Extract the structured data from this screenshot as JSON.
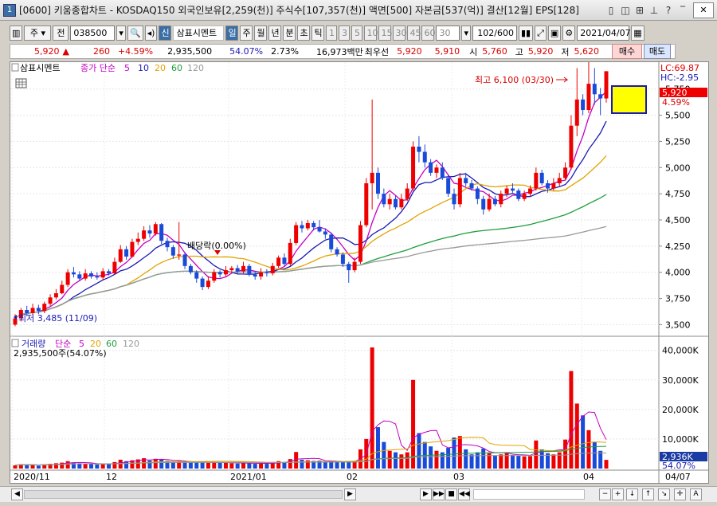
{
  "window": {
    "title": "[0600] 키움종합차트 - KOSDAQ150 외국인보유[2,259(천)] 주식수[107,357(천)] 액면[500] 자본금[537(억)] 결산[12월] EPS[128]",
    "icon": "1"
  },
  "toolbar": {
    "period_sel": "주",
    "prev": "전",
    "code": "038500",
    "stock_badge": "신",
    "stock_name": "삼표시멘트",
    "periods": [
      "일",
      "주",
      "월",
      "년",
      "분",
      "초",
      "틱"
    ],
    "nums": [
      "1",
      "3",
      "5",
      "10",
      "15",
      "30",
      "45",
      "60"
    ],
    "interval": "30",
    "count": "102/600",
    "date": "2021/04/07"
  },
  "price": {
    "current": "5,920",
    "arrow": "▲",
    "change": "260",
    "change_pct": "+4.59%",
    "volume": "2,935,500",
    "vol_pct": "54.07%",
    "turnover": "2.73%",
    "amount": "16,973백만",
    "priority_label": "최우선",
    "ask": "5,920",
    "bid": "5,910",
    "open_label": "시",
    "open": "5,760",
    "high_label": "고",
    "high": "5,920",
    "low_label": "저",
    "low": "5,620",
    "buy": "매수",
    "sell": "매도"
  },
  "chart": {
    "legend_name": "삼표시멘트",
    "legend_ma": "종가 단순",
    "ma_periods": [
      "5",
      "10",
      "20",
      "60",
      "120"
    ],
    "ma_colors": [
      "#c400c4",
      "#1a1ab4",
      "#e0a400",
      "#1e9e3e",
      "#999999"
    ],
    "lc": "LC:69.87",
    "hc": "HC:-2.95",
    "last_price": "5,920",
    "last_pct": "4.59%",
    "high_annot": "최고 6,100 (03/30)",
    "low_annot": "최저 3,485 (11/09)",
    "div_annot": "배당락(0.00%)",
    "y_labels": [
      "5,750",
      "5,500",
      "5,250",
      "5,000",
      "4,750",
      "4,500",
      "4,250",
      "4,000",
      "3,750",
      "3,500"
    ],
    "vol_legend": "거래량",
    "vol_ma": "단순",
    "vol_periods": [
      "5",
      "20",
      "60",
      "120"
    ],
    "vol_value": "2,935,500주(54.07%)",
    "vol_labels": [
      "40,000K",
      "30,000K",
      "20,000K",
      "10,000K"
    ],
    "vol_last": "2,936K",
    "vol_last_pct": "54.07%",
    "x_labels": [
      "2020/11",
      "12",
      "2021/01",
      "02",
      "03",
      "04"
    ],
    "x_right": "04/07"
  },
  "chart_data": {
    "type": "candlestick",
    "y_range": [
      3450,
      5900
    ],
    "volume_range_k": [
      0,
      41000
    ],
    "candles": [
      [
        3500,
        3560,
        3485,
        3600,
        1100
      ],
      [
        3560,
        3640,
        3530,
        3660,
        1500
      ],
      [
        3640,
        3610,
        3580,
        3680,
        1200
      ],
      [
        3610,
        3660,
        3590,
        3700,
        1300
      ],
      [
        3660,
        3630,
        3600,
        3690,
        1000
      ],
      [
        3630,
        3700,
        3610,
        3720,
        1400
      ],
      [
        3700,
        3760,
        3680,
        3790,
        1600
      ],
      [
        3760,
        3800,
        3740,
        3840,
        1800
      ],
      [
        3800,
        3880,
        3790,
        3920,
        2000
      ],
      [
        3880,
        4000,
        3860,
        4030,
        2500
      ],
      [
        4000,
        3980,
        3950,
        4050,
        2100
      ],
      [
        3980,
        3940,
        3920,
        4010,
        1800
      ],
      [
        3940,
        3990,
        3920,
        4030,
        1700
      ],
      [
        3990,
        3960,
        3940,
        4010,
        1500
      ],
      [
        3960,
        3950,
        3930,
        4000,
        1400
      ],
      [
        3950,
        4010,
        3930,
        4040,
        1600
      ],
      [
        4010,
        3990,
        3970,
        4030,
        1500
      ],
      [
        3990,
        4100,
        3980,
        4140,
        2200
      ],
      [
        4100,
        4220,
        4090,
        4260,
        3000
      ],
      [
        4220,
        4150,
        4120,
        4250,
        2500
      ],
      [
        4150,
        4290,
        4140,
        4320,
        2800
      ],
      [
        4290,
        4320,
        4260,
        4380,
        3100
      ],
      [
        4320,
        4400,
        4300,
        4440,
        3500
      ],
      [
        4400,
        4370,
        4330,
        4450,
        2700
      ],
      [
        4370,
        4460,
        4350,
        4480,
        3300
      ],
      [
        4460,
        4300,
        4270,
        4470,
        3000
      ],
      [
        4300,
        4240,
        4200,
        4330,
        2600
      ],
      [
        4240,
        4160,
        4130,
        4260,
        2400
      ],
      [
        4160,
        4170,
        4120,
        4480,
        2500
      ],
      [
        4170,
        4060,
        4030,
        4190,
        2300
      ],
      [
        4060,
        4000,
        3980,
        4080,
        2100
      ],
      [
        4000,
        3940,
        3900,
        4020,
        2000
      ],
      [
        3940,
        3860,
        3830,
        3960,
        2100
      ],
      [
        3860,
        3920,
        3840,
        3960,
        1900
      ],
      [
        3920,
        4000,
        3900,
        4030,
        2200
      ],
      [
        4000,
        3980,
        3950,
        4020,
        2000
      ],
      [
        3980,
        4020,
        3960,
        4060,
        1900
      ],
      [
        4020,
        4040,
        3990,
        4060,
        1800
      ],
      [
        4040,
        4010,
        3990,
        4070,
        1700
      ],
      [
        4010,
        4060,
        3990,
        4100,
        2000
      ],
      [
        4060,
        3980,
        3960,
        4080,
        1800
      ],
      [
        3980,
        3960,
        3930,
        4010,
        1600
      ],
      [
        3960,
        4000,
        3930,
        4040,
        1700
      ],
      [
        4000,
        3990,
        3960,
        4030,
        1600
      ],
      [
        3990,
        4060,
        3970,
        4090,
        2200
      ],
      [
        4060,
        4140,
        4040,
        4160,
        2500
      ],
      [
        4140,
        4080,
        4060,
        4180,
        2200
      ],
      [
        4080,
        4280,
        4060,
        4320,
        3200
      ],
      [
        4280,
        4450,
        4260,
        4480,
        5600
      ],
      [
        4450,
        4420,
        4380,
        4490,
        3000
      ],
      [
        4420,
        4470,
        4400,
        4500,
        2800
      ],
      [
        4470,
        4430,
        4400,
        4490,
        2600
      ],
      [
        4430,
        4390,
        4380,
        4500,
        2700
      ],
      [
        4390,
        4360,
        4320,
        4420,
        2300
      ],
      [
        4360,
        4220,
        4190,
        4380,
        2600
      ],
      [
        4220,
        4170,
        4150,
        4240,
        2200
      ],
      [
        4170,
        4080,
        4050,
        4190,
        2400
      ],
      [
        4080,
        4020,
        3900,
        4100,
        2300
      ],
      [
        4020,
        4100,
        4000,
        4140,
        2600
      ],
      [
        4100,
        4450,
        4080,
        4490,
        6500
      ],
      [
        4450,
        4850,
        4430,
        4900,
        10000
      ],
      [
        4850,
        4950,
        4600,
        5650,
        41000
      ],
      [
        4950,
        4750,
        4700,
        5000,
        14000
      ],
      [
        4750,
        4650,
        4620,
        4800,
        9000
      ],
      [
        4650,
        4700,
        4600,
        4750,
        6000
      ],
      [
        4700,
        4620,
        4600,
        4730,
        5500
      ],
      [
        4620,
        4700,
        4600,
        4750,
        4800
      ],
      [
        4700,
        4800,
        4680,
        4850,
        5500
      ],
      [
        4800,
        5200,
        4780,
        5250,
        30000
      ],
      [
        5200,
        5150,
        5050,
        5300,
        12000
      ],
      [
        5150,
        5050,
        5000,
        5220,
        9000
      ],
      [
        5050,
        4950,
        4920,
        5080,
        7500
      ],
      [
        4950,
        5000,
        4900,
        5030,
        6000
      ],
      [
        5000,
        4900,
        4880,
        5050,
        5500
      ],
      [
        4900,
        4750,
        4720,
        4930,
        7000
      ],
      [
        4750,
        4650,
        4600,
        4800,
        10500
      ],
      [
        4650,
        4900,
        4620,
        4950,
        11000
      ],
      [
        4900,
        4850,
        4820,
        4950,
        6500
      ],
      [
        4850,
        4800,
        4780,
        4880,
        4800
      ],
      [
        4800,
        4700,
        4650,
        4820,
        5500
      ],
      [
        4700,
        4600,
        4550,
        4730,
        6800
      ],
      [
        4600,
        4700,
        4580,
        4750,
        5200
      ],
      [
        4700,
        4650,
        4630,
        4730,
        4500
      ],
      [
        4650,
        4750,
        4620,
        4780,
        4800
      ],
      [
        4750,
        4800,
        4720,
        4830,
        5200
      ],
      [
        4800,
        4780,
        4760,
        4850,
        4600
      ],
      [
        4780,
        4700,
        4680,
        4800,
        4300
      ],
      [
        4700,
        4750,
        4680,
        4780,
        4100
      ],
      [
        4750,
        4800,
        4720,
        4830,
        4200
      ],
      [
        4800,
        4950,
        4780,
        5000,
        9500
      ],
      [
        4950,
        4850,
        4830,
        4980,
        6500
      ],
      [
        4850,
        4800,
        4760,
        4880,
        5200
      ],
      [
        4800,
        4850,
        4780,
        4900,
        4800
      ],
      [
        4850,
        4900,
        4820,
        4950,
        5500
      ],
      [
        4900,
        5000,
        4880,
        5050,
        9800
      ],
      [
        5000,
        5400,
        4980,
        5500,
        33000
      ],
      [
        5400,
        5650,
        5300,
        5950,
        22000
      ],
      [
        5650,
        5550,
        5500,
        5700,
        18000
      ],
      [
        5550,
        5800,
        5520,
        6100,
        13000
      ],
      [
        5800,
        5700,
        5600,
        5950,
        9000
      ],
      [
        5700,
        5660,
        5500,
        5760,
        6000
      ],
      [
        5660,
        5920,
        5620,
        5920,
        2936
      ]
    ]
  }
}
